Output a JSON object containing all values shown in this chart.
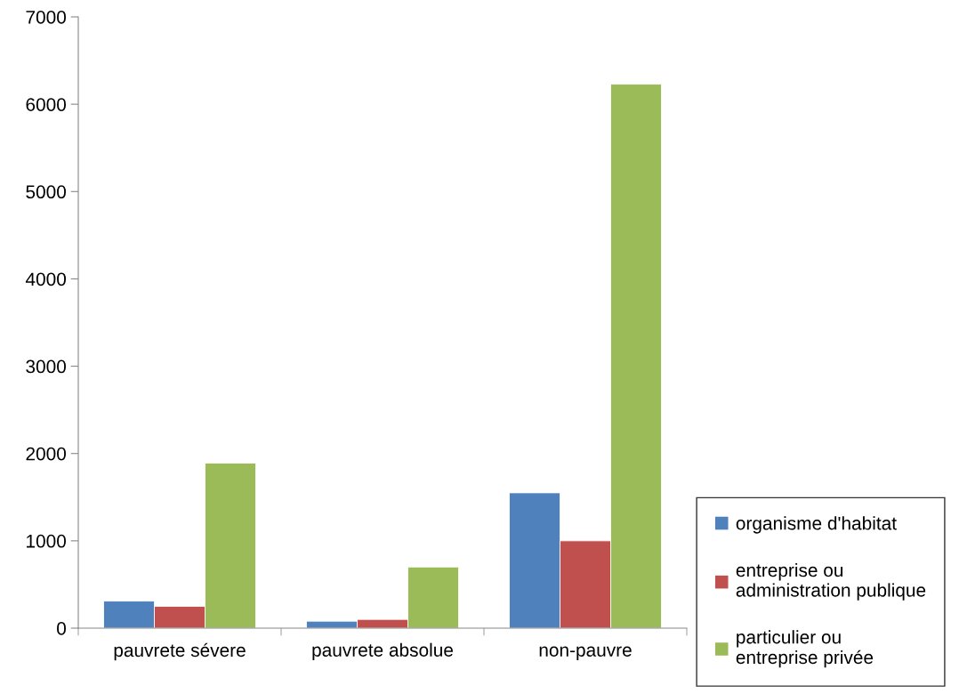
{
  "chart_data": {
    "type": "bar",
    "categories": [
      "pauvrete sévere",
      "pauvrete absolue",
      "non-pauvre"
    ],
    "series": [
      {
        "name": "organisme d'habitat",
        "color": "#4f81bd",
        "values": [
          310,
          80,
          1550
        ]
      },
      {
        "name": "entreprise ou administration publique",
        "color": "#c0504d",
        "values": [
          250,
          100,
          1000
        ]
      },
      {
        "name": "particulier ou entreprise privée",
        "color": "#9bbb59",
        "values": [
          1890,
          700,
          6230
        ]
      }
    ],
    "ylim": [
      0,
      7000
    ],
    "yticks": [
      0,
      1000,
      2000,
      3000,
      4000,
      5000,
      6000,
      7000
    ],
    "grid": false,
    "legend": "right"
  }
}
